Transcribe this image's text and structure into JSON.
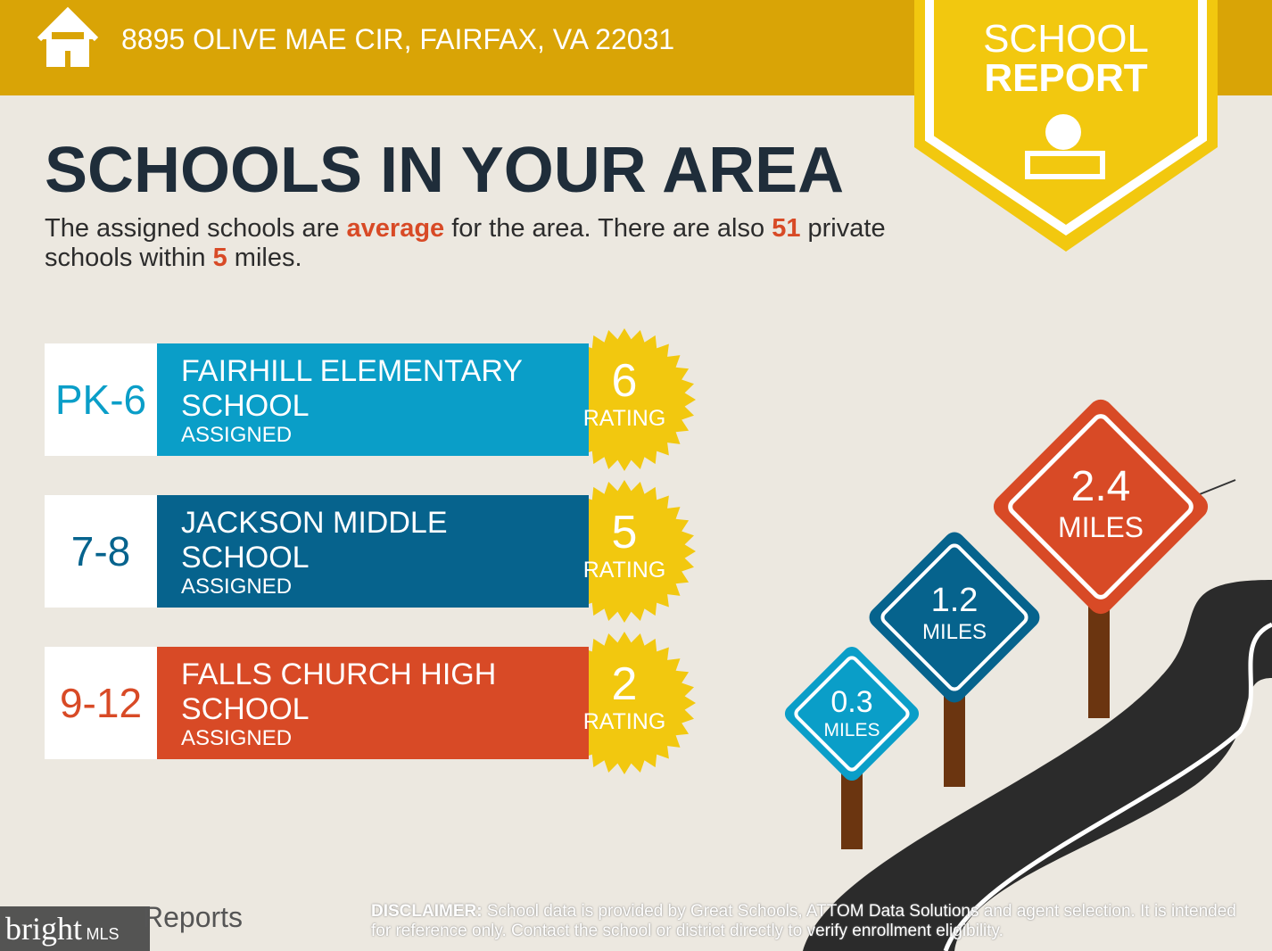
{
  "header": {
    "address": "8895 OLIVE MAE CIR, FAIRFAX, VA 22031"
  },
  "badge": {
    "line1": "SCHOOL",
    "line2": "REPORT"
  },
  "title": "SCHOOLS IN YOUR AREA",
  "intro": {
    "part1": "The assigned schools are ",
    "quality": "average",
    "part2": " for the area. There are also ",
    "private_count": 51,
    "part3": " private schools within ",
    "radius": 5,
    "part4": " miles."
  },
  "schools": [
    {
      "grades": "PK-6",
      "name": "FAIRHILL ELEMENTARY SCHOOL",
      "status": "ASSIGNED",
      "rating": 6,
      "rating_label": "RATING"
    },
    {
      "grades": "7-8",
      "name": "JACKSON MIDDLE SCHOOL",
      "status": "ASSIGNED",
      "rating": 5,
      "rating_label": "RATING"
    },
    {
      "grades": "9-12",
      "name": "FALLS CHURCH HIGH SCHOOL",
      "status": "ASSIGNED",
      "rating": 2,
      "rating_label": "RATING"
    }
  ],
  "signs": [
    {
      "distance": 0.3,
      "unit": "MILES"
    },
    {
      "distance": 1.2,
      "unit": "MILES"
    },
    {
      "distance": 2.4,
      "unit": "MILES"
    }
  ],
  "footer": {
    "brand": "Reports",
    "watermark": "bright",
    "watermark_suffix": "MLS",
    "disclaimer_label": "DISCLAIMER:",
    "disclaimer": " School data is provided by Great Schools, ATTOM Data Solutions and agent selection. It is intended for reference only. Contact the school or district directly to verify enrollment eligibility."
  }
}
